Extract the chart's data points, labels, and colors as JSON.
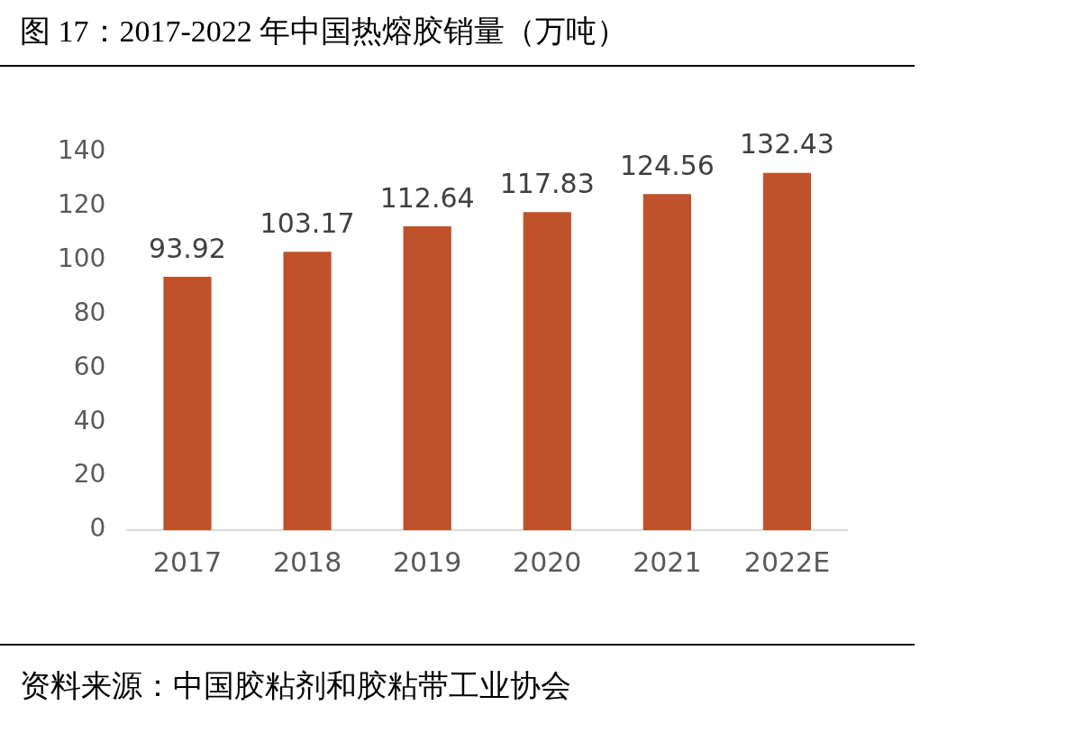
{
  "chart_data": {
    "type": "bar",
    "title": "图 17：2017-2022 年中国热熔胶销量（万吨）",
    "categories": [
      "2017",
      "2018",
      "2019",
      "2020",
      "2021",
      "2022E"
    ],
    "values": [
      93.92,
      103.17,
      112.64,
      117.83,
      124.56,
      132.43
    ],
    "color": "#c0522b",
    "ylim": [
      0,
      140
    ],
    "yticks": [
      0,
      20,
      40,
      60,
      80,
      100,
      120,
      140
    ],
    "data_labels": true,
    "annotations": [
      "资料来源：中国胶粘剂和胶粘带工业协会"
    ]
  }
}
